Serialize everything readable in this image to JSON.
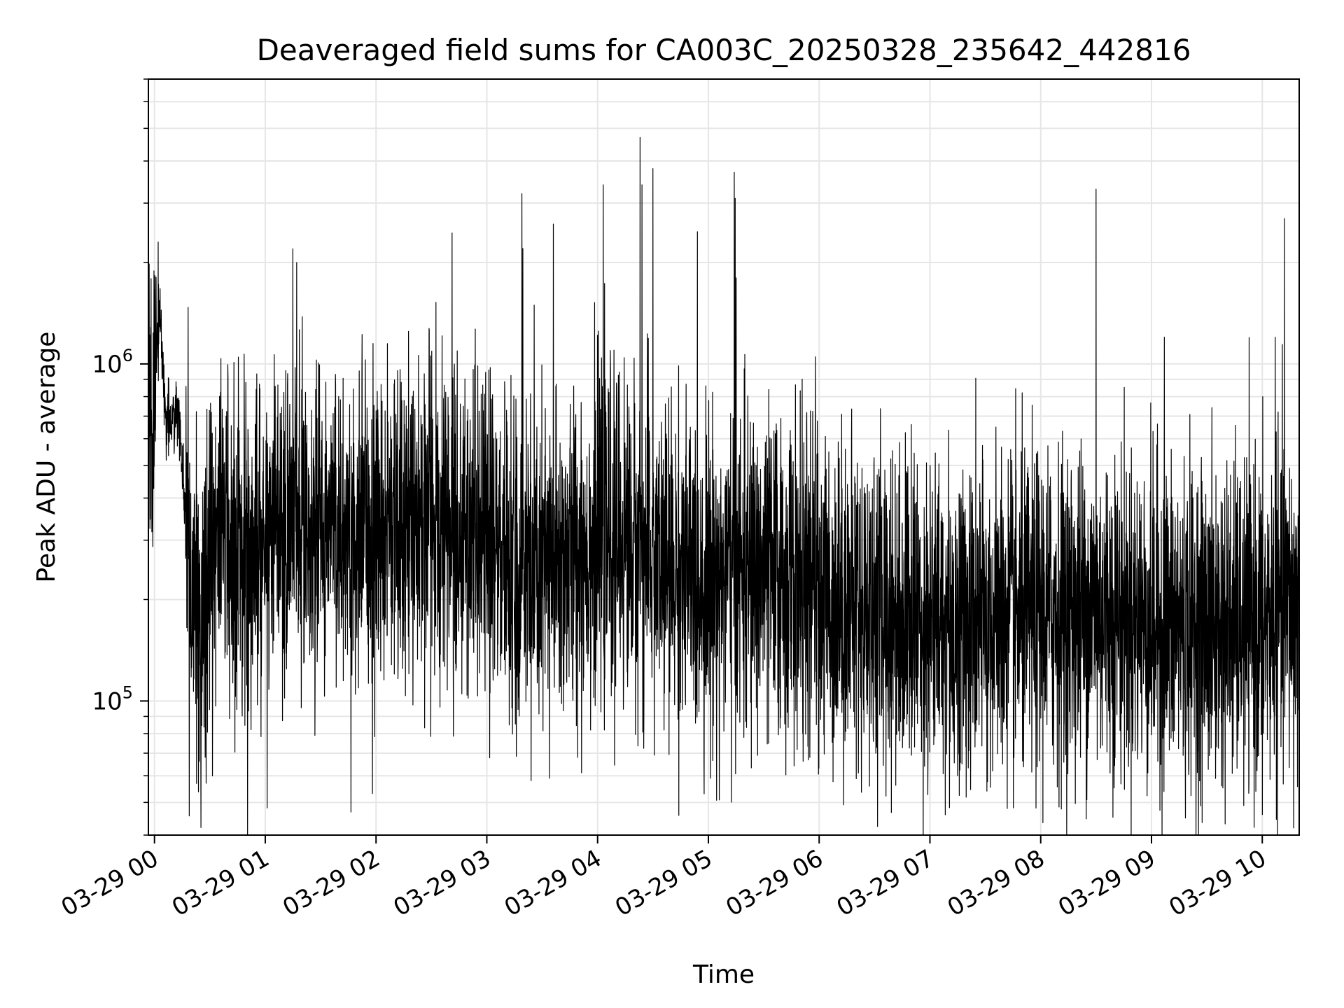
{
  "chart_data": {
    "type": "line",
    "title": "Deaveraged field sums for CA003C_20250328_235642_442816",
    "xlabel": "Time",
    "ylabel": "Peak ADU - average",
    "yscale": "log",
    "ylim": [
      40000,
      7000000
    ],
    "xlim": [
      "2025-03-28T23:56:42",
      "2025-03-29T10:20:00"
    ],
    "x_ticks": [
      "2025-03-29T00:00:00",
      "2025-03-29T01:00:00",
      "2025-03-29T02:00:00",
      "2025-03-29T03:00:00",
      "2025-03-29T04:00:00",
      "2025-03-29T05:00:00",
      "2025-03-29T06:00:00",
      "2025-03-29T07:00:00",
      "2025-03-29T08:00:00",
      "2025-03-29T09:00:00",
      "2025-03-29T10:00:00"
    ],
    "x_tick_labels": [
      "03-29 00",
      "03-29 01",
      "03-29 02",
      "03-29 03",
      "03-29 04",
      "03-29 05",
      "03-29 06",
      "03-29 07",
      "03-29 08",
      "03-29 09",
      "03-29 10"
    ],
    "y_ticks": [
      {
        "base": "10",
        "exp": "5",
        "value": 100000
      },
      {
        "base": "10",
        "exp": "6",
        "value": 1000000
      }
    ],
    "grid": true,
    "line_color": "#000000",
    "grid_color": "#e6e6e6",
    "series": [
      {
        "x": [
          "2025-03-28T23:56:42",
          "2025-03-28T23:58:00",
          "2025-03-29T00:00:00",
          "2025-03-29T00:02:00",
          "2025-03-29T00:03:00",
          "2025-03-29T00:04:00",
          "2025-03-29T00:06:00",
          "2025-03-29T00:08:00",
          "2025-03-29T00:10:00",
          "2025-03-29T00:12:00",
          "2025-03-29T00:14:00",
          "2025-03-29T00:16:00",
          "2025-03-29T00:18:00",
          "2025-03-29T00:20:00",
          "2025-03-29T00:25:00",
          "2025-03-29T00:30:00",
          "2025-03-29T00:40:00",
          "2025-03-29T00:50:00",
          "2025-03-29T01:00:00",
          "2025-03-29T01:10:00",
          "2025-03-29T01:20:00",
          "2025-03-29T01:30:00",
          "2025-03-29T01:45:00",
          "2025-03-29T02:00:00",
          "2025-03-29T02:15:00",
          "2025-03-29T02:30:00",
          "2025-03-29T02:45:00",
          "2025-03-29T03:00:00",
          "2025-03-29T03:15:00",
          "2025-03-29T03:30:00",
          "2025-03-29T03:45:00",
          "2025-03-29T04:00:00",
          "2025-03-29T04:15:00",
          "2025-03-29T04:30:00",
          "2025-03-29T04:45:00",
          "2025-03-29T05:00:00",
          "2025-03-29T05:15:00",
          "2025-03-29T05:30:00",
          "2025-03-29T05:45:00",
          "2025-03-29T06:00:00",
          "2025-03-29T06:30:00",
          "2025-03-29T07:00:00",
          "2025-03-29T07:30:00",
          "2025-03-29T08:00:00",
          "2025-03-29T08:30:00",
          "2025-03-29T09:00:00",
          "2025-03-29T09:30:00",
          "2025-03-29T10:00:00",
          "2025-03-29T10:20:00"
        ],
        "y": [
          550000,
          600000,
          900000,
          1300000,
          1500000,
          1100000,
          700000,
          680000,
          700000,
          750000,
          600000,
          400000,
          250000,
          180000,
          170000,
          300000,
          300000,
          290000,
          310000,
          320000,
          330000,
          330000,
          320000,
          320000,
          350000,
          360000,
          320000,
          290000,
          250000,
          240000,
          260000,
          300000,
          300000,
          260000,
          240000,
          230000,
          235000,
          240000,
          225000,
          210000,
          190000,
          175000,
          170000,
          180000,
          190000,
          170000,
          165000,
          170000,
          200000
        ]
      }
    ],
    "spikes": [
      {
        "x": "2025-03-29T00:02:00",
        "y": 2300000
      },
      {
        "x": "2025-03-29T01:17:00",
        "y": 2000000
      },
      {
        "x": "2025-03-29T03:19:00",
        "y": 3200000
      },
      {
        "x": "2025-03-29T03:19:30",
        "y": 2200000
      },
      {
        "x": "2025-03-29T03:36:00",
        "y": 2600000
      },
      {
        "x": "2025-03-29T04:03:00",
        "y": 3400000
      },
      {
        "x": "2025-03-29T04:23:00",
        "y": 4700000
      },
      {
        "x": "2025-03-29T04:24:00",
        "y": 3400000
      },
      {
        "x": "2025-03-29T04:30:00",
        "y": 3800000
      },
      {
        "x": "2025-03-29T05:14:00",
        "y": 3700000
      },
      {
        "x": "2025-03-29T05:14:30",
        "y": 3100000
      },
      {
        "x": "2025-03-29T05:15:00",
        "y": 1800000
      },
      {
        "x": "2025-03-29T05:58:00",
        "y": 1050000
      },
      {
        "x": "2025-03-29T08:30:00",
        "y": 3300000
      },
      {
        "x": "2025-03-29T09:07:00",
        "y": 1200000
      },
      {
        "x": "2025-03-29T10:07:00",
        "y": 1200000
      },
      {
        "x": "2025-03-29T10:12:00",
        "y": 2700000
      },
      {
        "x": "2025-03-29T00:28:00",
        "y": 57000
      },
      {
        "x": "2025-03-29T03:24:00",
        "y": 58000
      },
      {
        "x": "2025-03-29T03:34:00",
        "y": 59000
      },
      {
        "x": "2025-03-29T07:15:00",
        "y": 60000
      },
      {
        "x": "2025-03-29T10:00:00",
        "y": 46000
      },
      {
        "x": "2025-03-29T10:17:00",
        "y": 42000
      }
    ]
  }
}
